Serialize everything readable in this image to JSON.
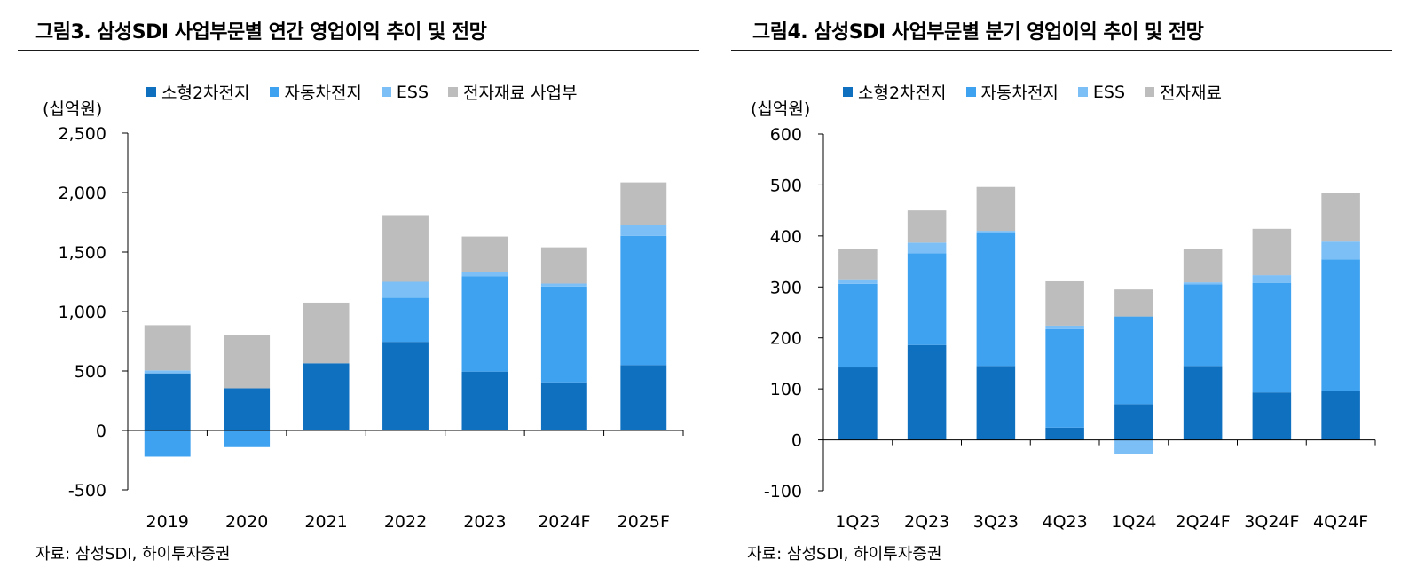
{
  "colors": {
    "small_battery": "#0F70C0",
    "auto_battery": "#3FA2F0",
    "ess": "#7CBFF6",
    "materials": "#BDBDBD"
  },
  "left": {
    "title": "그림3. 삼성SDI 사업부문별 연간 영업이익 추이 및 전망",
    "unit": "(십억원)",
    "source": "자료: 삼성SDI, 하이투자증권",
    "legend": [
      "소형2차전지",
      "자동차전지",
      "ESS",
      "전자재료 사업부"
    ]
  },
  "right": {
    "title": "그림4. 삼성SDI 사업부문별 분기 영업이익 추이 및 전망",
    "unit": "(십억원)",
    "source": "자료: 삼성SDI, 하이투자증권",
    "legend": [
      "소형2차전지",
      "자동차전지",
      "ESS",
      "전자재료"
    ]
  },
  "chart_data": [
    {
      "type": "bar",
      "stacked": true,
      "title": "그림3. 삼성SDI 사업부문별 연간 영업이익 추이 및 전망",
      "ylabel": "(십억원)",
      "ylim": [
        -500,
        2500
      ],
      "yticks": [
        -500,
        0,
        500,
        1000,
        1500,
        2000,
        2500
      ],
      "ytick_labels": [
        "-500",
        "0",
        "500",
        "1,000",
        "1,500",
        "2,000",
        "2,500"
      ],
      "categories": [
        "2019",
        "2020",
        "2021",
        "2022",
        "2023",
        "2024F",
        "2025F"
      ],
      "series": [
        {
          "name": "소형2차전지",
          "values": [
            480,
            355,
            565,
            745,
            495,
            405,
            550
          ]
        },
        {
          "name": "자동차전지",
          "values": [
            -220,
            -140,
            0,
            370,
            800,
            805,
            1085
          ]
        },
        {
          "name": "ESS",
          "values": [
            25,
            0,
            0,
            135,
            40,
            25,
            95
          ]
        },
        {
          "name": "전자재료 사업부",
          "values": [
            380,
            445,
            510,
            560,
            295,
            305,
            355
          ]
        }
      ]
    },
    {
      "type": "bar",
      "stacked": true,
      "title": "그림4. 삼성SDI 사업부문별 분기 영업이익 추이 및 전망",
      "ylabel": "(십억원)",
      "ylim": [
        -100,
        600
      ],
      "yticks": [
        -100,
        0,
        100,
        200,
        300,
        400,
        500,
        600
      ],
      "ytick_labels": [
        "-100",
        "0",
        "100",
        "200",
        "300",
        "400",
        "500",
        "600"
      ],
      "categories": [
        "1Q23",
        "2Q23",
        "3Q23",
        "4Q23",
        "1Q24",
        "2Q24F",
        "3Q24F",
        "4Q24F"
      ],
      "series": [
        {
          "name": "소형2차전지",
          "values": [
            142,
            186,
            145,
            24,
            70,
            145,
            93,
            96
          ]
        },
        {
          "name": "자동차전지",
          "values": [
            164,
            180,
            260,
            193,
            172,
            160,
            215,
            258
          ]
        },
        {
          "name": "ESS",
          "values": [
            9,
            21,
            5,
            7,
            -27,
            4,
            15,
            35
          ]
        },
        {
          "name": "전자재료",
          "values": [
            60,
            63,
            86,
            87,
            53,
            65,
            91,
            96
          ]
        }
      ]
    }
  ]
}
